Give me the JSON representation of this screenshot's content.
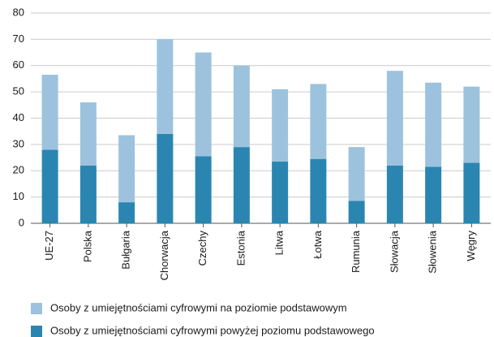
{
  "chart_data": {
    "type": "stacked_bar",
    "categories": [
      "UE-27",
      "Polska",
      "Bułgaria",
      "Chorwacja",
      "Czechy",
      "Estonia",
      "Litwa",
      "Łotwa",
      "Rumunia",
      "Słowacja",
      "Słowenia",
      "Węgry"
    ],
    "series": [
      {
        "name": "Osoby z umiejętnościami cyfrowymi na poziomie podstawowym",
        "color": "#9cc2de",
        "values": [
          28.5,
          24,
          25.5,
          36,
          39.5,
          31,
          27.5,
          28.5,
          20.5,
          36,
          32,
          29
        ]
      },
      {
        "name": "Osoby z umiejętnościami cyfrowymi powyżej poziomu podstawowego",
        "color": "#2a86b1",
        "values": [
          28,
          22,
          8,
          34,
          25.5,
          29,
          23.5,
          24.5,
          8.5,
          22,
          21.5,
          23
        ]
      }
    ],
    "ylim": [
      0,
      80
    ],
    "yticks": [
      0,
      10,
      20,
      30,
      40,
      50,
      60,
      70,
      80
    ],
    "grid": true
  }
}
